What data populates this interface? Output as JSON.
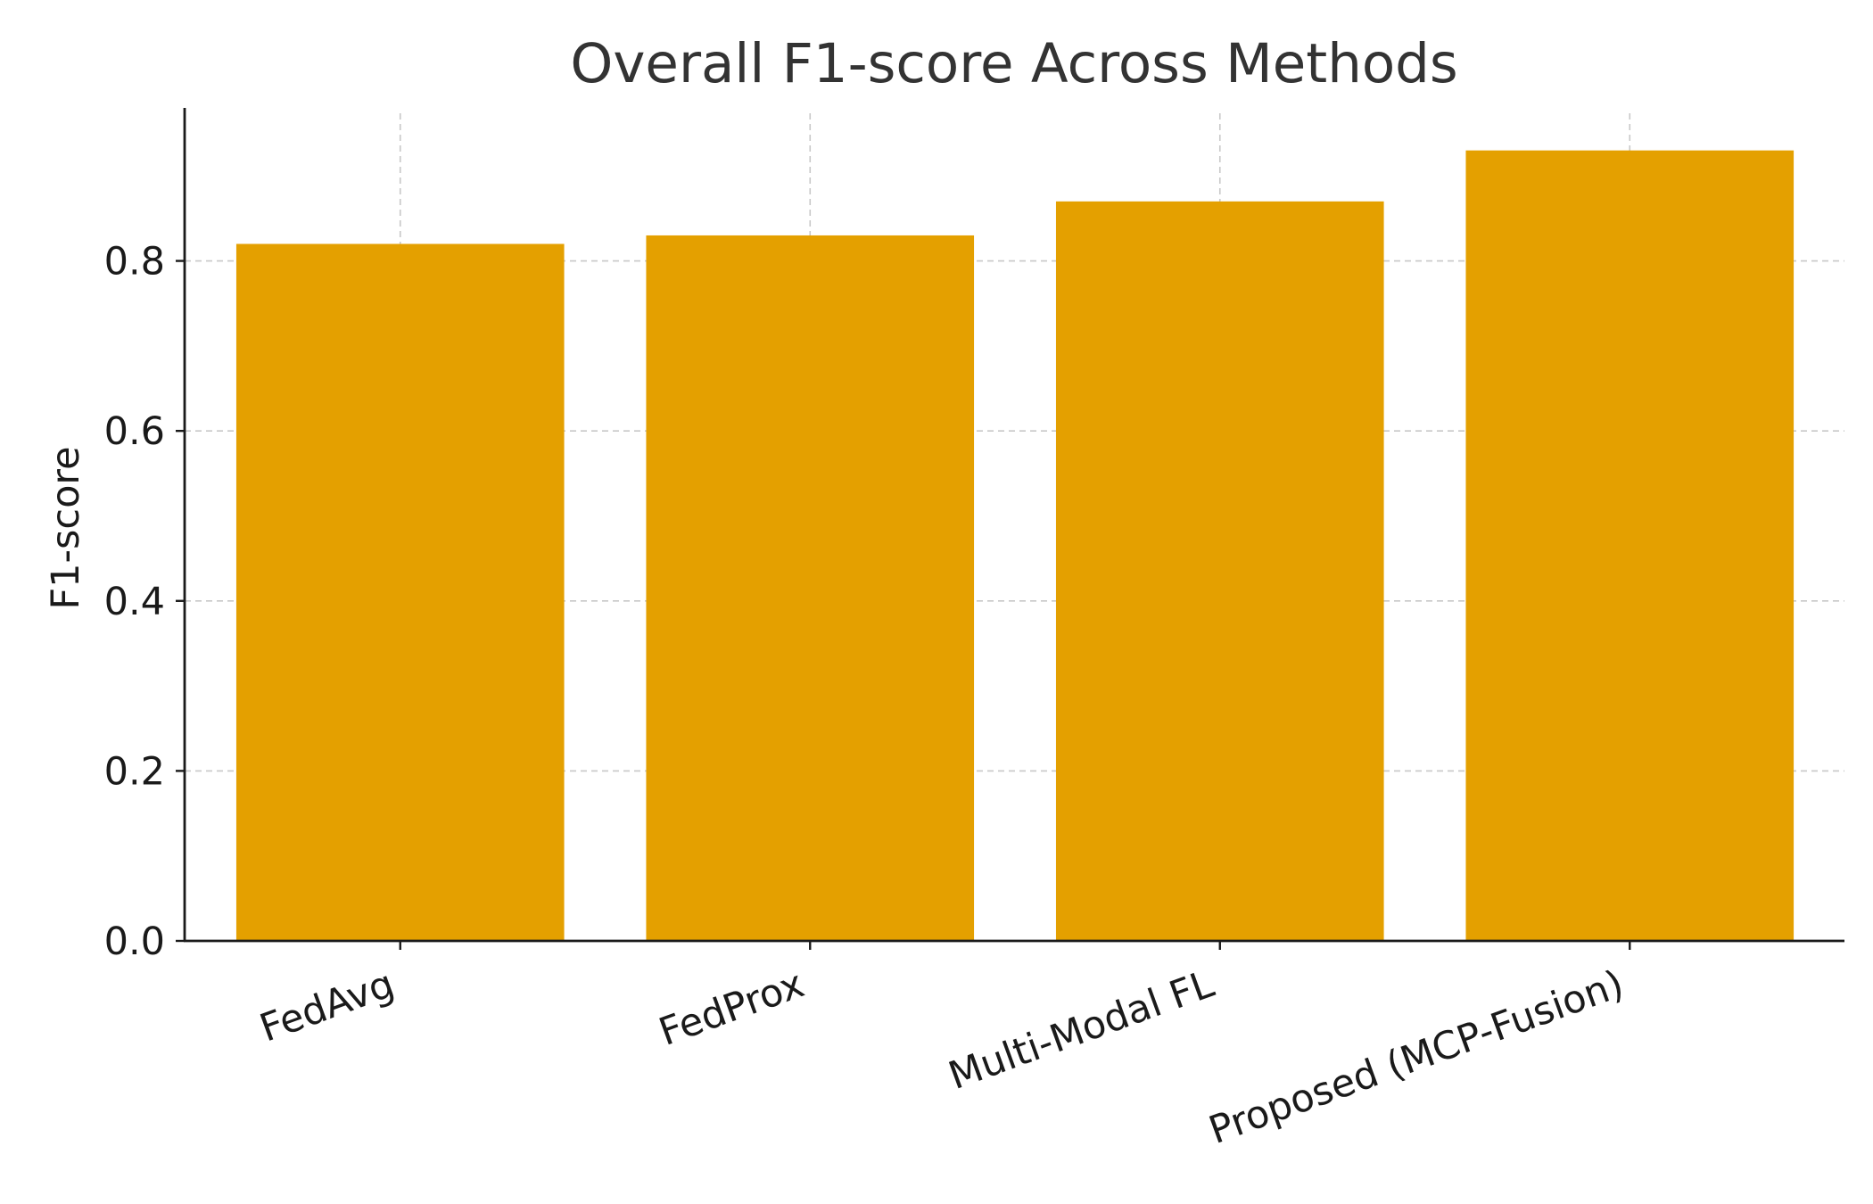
{
  "chart_data": {
    "type": "bar",
    "title": "Overall F1-score Across Methods",
    "xlabel": "",
    "ylabel": "F1-score",
    "categories": [
      "FedAvg",
      "FedProx",
      "Multi-Modal FL",
      "Proposed (MCP-Fusion)"
    ],
    "values": [
      0.82,
      0.83,
      0.87,
      0.93
    ],
    "ylim": [
      0,
      0.98
    ],
    "yticks": [
      "0.0",
      "0.2",
      "0.4",
      "0.6",
      "0.8"
    ],
    "bar_color": "#E4A000",
    "grid": true,
    "x_tick_rotation_deg": -20
  }
}
